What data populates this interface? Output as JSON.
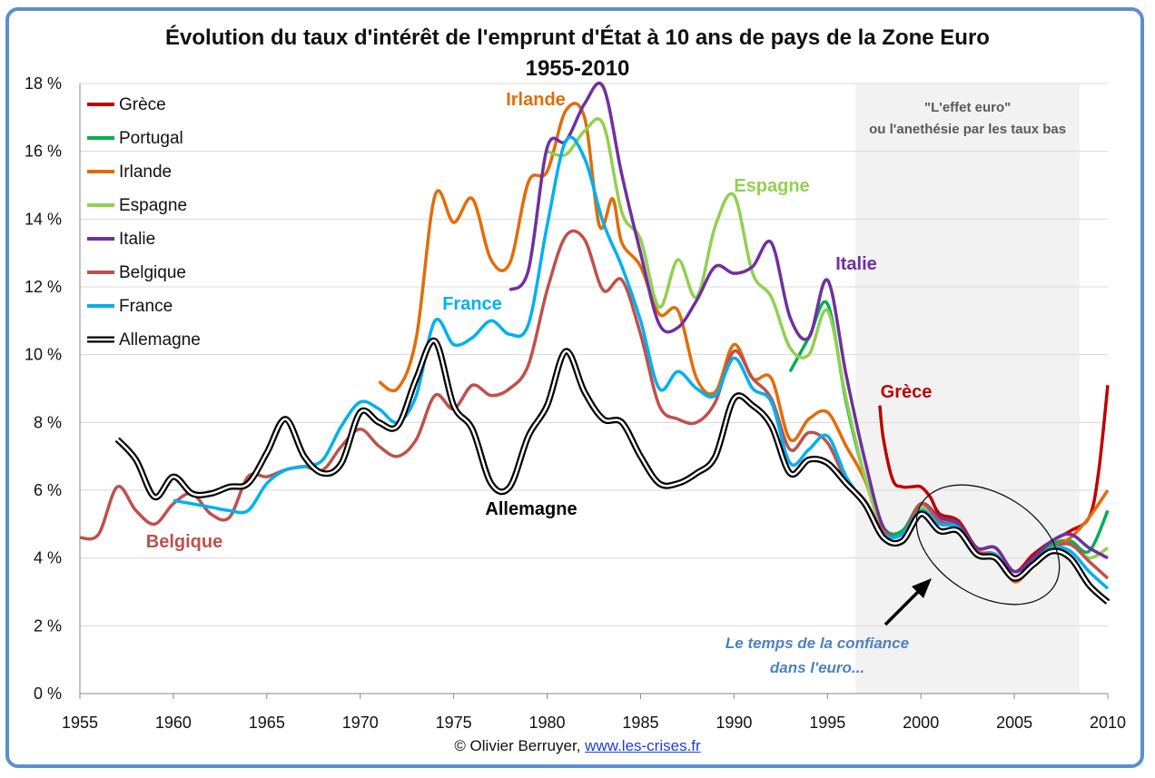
{
  "title_line1": "Évolution du taux d'intérêt de l'emprunt d'État à 10 ans de pays de la Zone Euro",
  "title_line2": "1955-2010",
  "credit_prefix": "© Olivier Berruyer,",
  "credit_link": "www.les-crises.fr",
  "colors": {
    "frame": "#5b8fd1",
    "shade": "#f2f2f2",
    "grid": "#d9d9d9"
  },
  "chart_data": {
    "type": "line",
    "xlim": [
      1955,
      2010
    ],
    "ylim": [
      0,
      18
    ],
    "x_ticks": [
      "1955",
      "1960",
      "1965",
      "1970",
      "1975",
      "1980",
      "1985",
      "1990",
      "1995",
      "2000",
      "2005",
      "2010"
    ],
    "y_ticks": [
      "0 %",
      "2 %",
      "4 %",
      "6 %",
      "8 %",
      "10 %",
      "12 %",
      "14 %",
      "16 %",
      "18 %"
    ],
    "grid": "horizontal",
    "legend_position": "top-left",
    "shaded_period": {
      "from": 1996.5,
      "to": 2008.5,
      "label_line1": "\"L'effet euro\"",
      "label_line2": "ou l'anethésie par les taux bas"
    },
    "annotation": {
      "line1": "Le temps de la confiance",
      "line2": "dans l'euro...",
      "color": "#4f81bd"
    },
    "series": [
      {
        "name": "Grèce",
        "color": "#c00000",
        "label": "Grèce",
        "x": [
          1997.8,
          1998,
          1998.5,
          1999,
          1999.5,
          2000,
          2000.5,
          2001,
          2002,
          2003,
          2004,
          2005,
          2006,
          2007,
          2008,
          2009,
          2009.5,
          2010
        ],
        "y": [
          8.5,
          7.5,
          6.3,
          6.1,
          6.1,
          6.1,
          5.8,
          5.3,
          5.1,
          4.3,
          4.3,
          3.6,
          4.1,
          4.5,
          4.8,
          5.2,
          6.5,
          9.1
        ]
      },
      {
        "name": "Portugal",
        "color": "#00b050",
        "label": "",
        "x": [
          1993,
          1994,
          1995,
          1996,
          1997,
          1998,
          1999,
          2000,
          2001,
          2002,
          2003,
          2004,
          2005,
          2006,
          2007,
          2008,
          2009,
          2010
        ],
        "y": [
          9.5,
          10.5,
          11.5,
          8.6,
          6.4,
          4.9,
          4.8,
          5.6,
          5.2,
          5.0,
          4.2,
          4.1,
          3.4,
          3.9,
          4.4,
          4.5,
          4.2,
          5.4
        ]
      },
      {
        "name": "Irlande",
        "color": "#e36c09",
        "label": "Irlande",
        "x": [
          1971,
          1972,
          1973,
          1974,
          1975,
          1976,
          1977,
          1978,
          1979,
          1980,
          1981,
          1982,
          1982.8,
          1983.5,
          1984,
          1985,
          1986,
          1987,
          1988,
          1989,
          1990,
          1991,
          1992,
          1993,
          1994,
          1995,
          1996,
          1997,
          1998,
          1999,
          2000,
          2001,
          2002,
          2003,
          2004,
          2005,
          2006,
          2007,
          2008,
          2009,
          2010
        ],
        "y": [
          9.2,
          9.0,
          10.5,
          14.7,
          13.9,
          14.6,
          12.8,
          12.7,
          15.1,
          15.4,
          17.2,
          17.0,
          13.8,
          14.6,
          13.3,
          12.6,
          11.2,
          11.3,
          9.3,
          8.9,
          10.3,
          9.3,
          9.3,
          7.5,
          8.1,
          8.3,
          7.3,
          6.3,
          4.8,
          4.7,
          5.5,
          5.0,
          5.0,
          4.1,
          4.1,
          3.3,
          3.8,
          4.3,
          4.6,
          5.2,
          6.0
        ]
      },
      {
        "name": "Espagne",
        "color": "#92d050",
        "label": "Espagne",
        "x": [
          1980,
          1981,
          1982,
          1983,
          1984,
          1985,
          1986,
          1987,
          1988,
          1989,
          1990,
          1991,
          1992,
          1993,
          1994,
          1995,
          1996,
          1997,
          1998,
          1999,
          2000,
          2001,
          2002,
          2003,
          2004,
          2005,
          2006,
          2007,
          2008,
          2009,
          2010
        ],
        "y": [
          16.0,
          15.9,
          16.6,
          16.8,
          14.2,
          13.4,
          11.4,
          12.8,
          11.7,
          13.8,
          14.7,
          12.4,
          11.7,
          10.2,
          10.0,
          11.3,
          8.7,
          6.4,
          4.8,
          4.7,
          5.5,
          5.1,
          5.0,
          4.1,
          4.1,
          3.4,
          3.8,
          4.3,
          4.4,
          4.0,
          4.3
        ]
      },
      {
        "name": "Italie",
        "color": "#7030a0",
        "label": "Italie",
        "x": [
          1978,
          1979,
          1980,
          1981,
          1982,
          1983,
          1984,
          1985,
          1986,
          1987,
          1988,
          1989,
          1990,
          1991,
          1992,
          1993,
          1994,
          1995,
          1996,
          1997,
          1998,
          1999,
          2000,
          2001,
          2002,
          2003,
          2004,
          2005,
          2006,
          2007,
          2008,
          2009,
          2010
        ],
        "y": [
          11.9,
          12.5,
          16.1,
          16.3,
          17.4,
          17.9,
          15.3,
          13.0,
          10.9,
          10.8,
          11.6,
          12.6,
          12.4,
          12.6,
          13.3,
          11.1,
          10.5,
          12.2,
          9.4,
          6.9,
          4.9,
          4.7,
          5.6,
          5.2,
          5.0,
          4.3,
          4.3,
          3.6,
          4.0,
          4.5,
          4.7,
          4.3,
          4.0
        ]
      },
      {
        "name": "Belgique",
        "color": "#c0504d",
        "label": "Belgique",
        "x": [
          1955,
          1956,
          1957,
          1958,
          1959,
          1960,
          1961,
          1962,
          1963,
          1964,
          1965,
          1966,
          1967,
          1968,
          1969,
          1970,
          1971,
          1972,
          1973,
          1974,
          1975,
          1976,
          1977,
          1978,
          1979,
          1980,
          1981,
          1982,
          1983,
          1984,
          1985,
          1986,
          1987,
          1988,
          1989,
          1990,
          1991,
          1992,
          1993,
          1994,
          1995,
          1996,
          1997,
          1998,
          1999,
          2000,
          2001,
          2002,
          2003,
          2004,
          2005,
          2006,
          2007,
          2008,
          2009,
          2010
        ],
        "y": [
          4.6,
          4.7,
          6.1,
          5.4,
          5.0,
          5.6,
          5.9,
          5.3,
          5.2,
          6.4,
          6.4,
          6.6,
          6.7,
          6.6,
          7.3,
          7.8,
          7.3,
          7.0,
          7.5,
          8.8,
          8.4,
          9.1,
          8.8,
          9.0,
          9.7,
          11.9,
          13.5,
          13.4,
          11.9,
          12.2,
          10.6,
          8.5,
          8.1,
          8.0,
          8.6,
          10.1,
          9.3,
          8.7,
          7.2,
          7.7,
          7.4,
          6.3,
          5.7,
          4.8,
          4.7,
          5.6,
          5.1,
          4.9,
          4.2,
          4.1,
          3.4,
          3.8,
          4.3,
          4.4,
          3.9,
          3.4
        ]
      },
      {
        "name": "France",
        "color": "#00b0f0",
        "label": "France",
        "x": [
          1960,
          1961,
          1962,
          1963,
          1964,
          1965,
          1966,
          1967,
          1968,
          1969,
          1970,
          1971,
          1972,
          1973,
          1974,
          1975,
          1976,
          1977,
          1978,
          1979,
          1980,
          1981,
          1982,
          1983,
          1984,
          1985,
          1986,
          1987,
          1988,
          1989,
          1990,
          1991,
          1992,
          1993,
          1994,
          1995,
          1996,
          1997,
          1998,
          1999,
          2000,
          2001,
          2002,
          2003,
          2004,
          2005,
          2006,
          2007,
          2008,
          2009,
          2010
        ],
        "y": [
          5.7,
          5.6,
          5.5,
          5.4,
          5.4,
          6.2,
          6.6,
          6.7,
          6.9,
          7.9,
          8.6,
          8.4,
          8.0,
          8.8,
          11.0,
          10.3,
          10.5,
          11.0,
          10.6,
          10.9,
          13.8,
          16.3,
          15.8,
          13.9,
          12.6,
          11.0,
          9.0,
          9.5,
          9.0,
          8.8,
          9.9,
          9.0,
          8.6,
          6.8,
          7.2,
          7.6,
          6.4,
          5.6,
          4.7,
          4.7,
          5.4,
          5.0,
          4.9,
          4.1,
          4.1,
          3.4,
          3.8,
          4.3,
          4.2,
          3.6,
          3.1
        ]
      },
      {
        "name": "Allemagne",
        "color": "#000000",
        "label": "Allemagne",
        "x": [
          1957,
          1958,
          1959,
          1960,
          1961,
          1962,
          1963,
          1964,
          1965,
          1966,
          1967,
          1968,
          1969,
          1970,
          1971,
          1972,
          1973,
          1974,
          1975,
          1976,
          1977,
          1978,
          1979,
          1980,
          1981,
          1982,
          1983,
          1984,
          1985,
          1986,
          1987,
          1988,
          1989,
          1990,
          1991,
          1992,
          1993,
          1994,
          1995,
          1996,
          1997,
          1998,
          1999,
          2000,
          2001,
          2002,
          2003,
          2004,
          2005,
          2006,
          2007,
          2008,
          2009,
          2010
        ],
        "y": [
          7.5,
          6.9,
          5.8,
          6.4,
          5.9,
          5.9,
          6.1,
          6.2,
          7.1,
          8.1,
          7.0,
          6.5,
          6.8,
          8.3,
          8.0,
          7.9,
          9.3,
          10.4,
          8.5,
          7.8,
          6.2,
          6.1,
          7.6,
          8.5,
          10.1,
          8.9,
          8.1,
          8.0,
          7.0,
          6.2,
          6.2,
          6.5,
          7.0,
          8.7,
          8.5,
          7.9,
          6.5,
          6.9,
          6.8,
          6.2,
          5.6,
          4.6,
          4.5,
          5.3,
          4.8,
          4.8,
          4.1,
          4.0,
          3.4,
          3.8,
          4.2,
          4.0,
          3.2,
          2.7
        ]
      }
    ],
    "legend": [
      "Grèce",
      "Portugal",
      "Irlande",
      "Espagne",
      "Italie",
      "Belgique",
      "France",
      "Allemagne"
    ]
  }
}
